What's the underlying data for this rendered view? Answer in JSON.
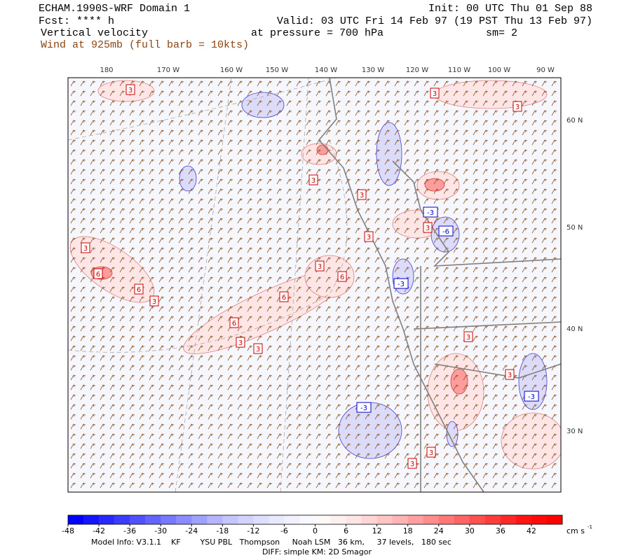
{
  "header": {
    "model": "ECHAM.1990S-WRF Domain 1",
    "forecast": "Fcst: **** h",
    "field": "Vertical velocity",
    "wind": "Wind at 925mb (full barb = 10kts)",
    "init": "Init: 00 UTC Thu 01 Sep 88",
    "valid": "Valid: 03 UTC Fri 14 Feb 97 (19 PST Thu 13 Feb 97)",
    "pressure": "at pressure =  700 hPa",
    "smoothing": "sm= 2"
  },
  "map": {
    "lon_labels": [
      "180",
      "170 W",
      "160 W",
      "150 W",
      "140 W",
      "130 W",
      "120 W",
      "110 W",
      "100 W",
      "90 W"
    ],
    "lat_labels": [
      "60 N",
      "50 N",
      "40 N",
      "30 N"
    ],
    "contour_labels": [
      "3",
      "3",
      "3",
      "3",
      "3",
      "-3",
      "3",
      "-6",
      "3",
      "3",
      "3",
      "6",
      "6",
      "-3",
      "6",
      "3",
      "6",
      "6",
      "3",
      "3",
      "3",
      "3",
      "-3",
      "-3",
      "3",
      "3"
    ]
  },
  "colorbar": {
    "lim": [
      -48,
      48
    ],
    "ticks": [
      -48,
      -42,
      -36,
      -30,
      -24,
      -18,
      -12,
      -6,
      0,
      6,
      12,
      18,
      24,
      30,
      36,
      42
    ],
    "colors": [
      "#0000ff",
      "#1414ff",
      "#2828ff",
      "#3c3cff",
      "#5050ff",
      "#6464ff",
      "#7878ff",
      "#8c8cff",
      "#a0a0ff",
      "#b4b4ff",
      "#c4c4ff",
      "#d2d2ff",
      "#dedeff",
      "#e8e8ff",
      "#f0f0ff",
      "#f8f8ff",
      "#fff8f8",
      "#fff0f0",
      "#ffe4e4",
      "#ffd4d4",
      "#ffc4c4",
      "#ffb4b4",
      "#ffa0a0",
      "#ff8c8c",
      "#ff7878",
      "#ff6464",
      "#ff5050",
      "#ff3c3c",
      "#ff2828",
      "#ff1414",
      "#ff0a0a",
      "#ff0000"
    ],
    "unit": "cm s",
    "unit_exponent": "-1"
  },
  "footer": {
    "model_info": "Model Info: V3.1.1    KF        YSU PBL   Thompson     Noah LSM   36 km,     37 levels,   180 sec",
    "diff": "DIFF: simple KM: 2D Smagor"
  }
}
